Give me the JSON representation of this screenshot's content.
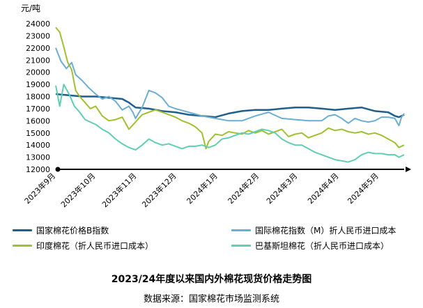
{
  "chart_data": {
    "type": "line",
    "title": "2023/24年度以来国内外棉花现货价格走势图",
    "source": "数据来源：国家棉花市场监测系统",
    "unit": "元/吨",
    "ylim": [
      12000,
      24000
    ],
    "yticks": [
      "24000",
      "23000",
      "22000",
      "21000",
      "20000",
      "19000",
      "18000",
      "17000",
      "16000",
      "15000",
      "14000",
      "13000",
      "12000"
    ],
    "xlim": [
      0,
      262
    ],
    "x_tick_labels": [
      "2023年9月",
      "2023年10月",
      "2023年11月",
      "2023年12月",
      "2024年1月",
      "2024年2月",
      "2024年3月",
      "2024年4月",
      "2024年5月"
    ],
    "x_tick_positions": [
      0,
      30,
      61,
      91,
      122,
      153,
      182,
      213,
      243
    ],
    "grid": false,
    "legend_position": "bottom",
    "series": [
      {
        "name": "国家棉花价格B指数",
        "color": "#1f5f8b",
        "x": [
          0,
          10,
          20,
          30,
          40,
          50,
          55,
          60,
          70,
          80,
          90,
          100,
          110,
          120,
          130,
          140,
          150,
          160,
          170,
          180,
          190,
          200,
          210,
          220,
          230,
          240,
          250,
          255,
          258,
          262
        ],
        "y": [
          18200,
          18100,
          18000,
          18000,
          17900,
          17800,
          17500,
          17100,
          17000,
          16800,
          16700,
          16500,
          16400,
          16300,
          16600,
          16800,
          16900,
          16900,
          17000,
          17100,
          17100,
          17000,
          16900,
          17000,
          17100,
          16800,
          16700,
          16400,
          16300,
          16500
        ]
      },
      {
        "name": "国际棉花指数（M）折人民币进口成本",
        "color": "#6aaed6",
        "x": [
          0,
          4,
          8,
          12,
          15,
          20,
          25,
          30,
          35,
          40,
          45,
          50,
          55,
          58,
          60,
          65,
          70,
          75,
          80,
          85,
          90,
          100,
          110,
          120,
          130,
          140,
          150,
          160,
          170,
          180,
          190,
          200,
          205,
          210,
          215,
          220,
          225,
          230,
          235,
          240,
          245,
          250,
          255,
          258,
          260,
          262
        ],
        "y": [
          22000,
          20900,
          20300,
          20800,
          19800,
          19300,
          18700,
          18200,
          17800,
          18000,
          17600,
          16900,
          17200,
          16700,
          16200,
          17100,
          18500,
          18300,
          17900,
          17200,
          17000,
          16700,
          16400,
          16200,
          16000,
          16000,
          16400,
          16700,
          16200,
          16100,
          16000,
          16000,
          16400,
          16500,
          16200,
          15800,
          16200,
          16000,
          15900,
          16000,
          16300,
          16300,
          16200,
          15600,
          16300,
          16600
        ]
      },
      {
        "name": "印度棉花（折人民币进口成本）",
        "color": "#9ec12e",
        "x": [
          0,
          3,
          6,
          9,
          12,
          15,
          18,
          22,
          26,
          30,
          35,
          40,
          45,
          50,
          55,
          60,
          65,
          70,
          75,
          80,
          85,
          90,
          95,
          100,
          105,
          110,
          113,
          115,
          120,
          125,
          130,
          135,
          140,
          145,
          150,
          155,
          160,
          165,
          170,
          175,
          180,
          185,
          190,
          195,
          200,
          205,
          210,
          215,
          220,
          225,
          230,
          235,
          240,
          245,
          250,
          255,
          258,
          260,
          262
        ],
        "y": [
          23700,
          23300,
          22100,
          20800,
          20200,
          18500,
          18000,
          17500,
          17000,
          17200,
          16400,
          16000,
          16100,
          16300,
          15300,
          15900,
          16500,
          16700,
          16900,
          16700,
          16500,
          16300,
          16000,
          15800,
          15500,
          15000,
          13700,
          14300,
          14900,
          14800,
          15100,
          15000,
          14900,
          15200,
          15000,
          15200,
          14900,
          15100,
          15300,
          14700,
          14900,
          15000,
          14600,
          14800,
          15000,
          15400,
          15200,
          15300,
          15100,
          15000,
          15100,
          14900,
          15000,
          14800,
          14500,
          14200,
          13800,
          13900,
          14000
        ]
      },
      {
        "name": "巴基斯坦棉花（折人民币进口成本）",
        "color": "#5ecfb0",
        "x": [
          0,
          3,
          6,
          10,
          14,
          18,
          22,
          26,
          30,
          35,
          40,
          45,
          50,
          55,
          60,
          65,
          70,
          75,
          80,
          85,
          90,
          95,
          100,
          105,
          110,
          115,
          120,
          125,
          130,
          135,
          140,
          145,
          150,
          155,
          160,
          165,
          170,
          175,
          180,
          185,
          190,
          195,
          200,
          205,
          210,
          215,
          220,
          225,
          230,
          235,
          240,
          245,
          250,
          255,
          258,
          262
        ],
        "y": [
          18900,
          17200,
          19000,
          18200,
          17200,
          16700,
          16100,
          15900,
          15700,
          15300,
          15000,
          14500,
          14100,
          13800,
          13600,
          14000,
          14500,
          14200,
          14000,
          14100,
          13900,
          13700,
          13900,
          13900,
          14000,
          13800,
          14000,
          14500,
          14600,
          14800,
          15000,
          14900,
          15100,
          15300,
          15200,
          15000,
          14500,
          14200,
          14000,
          14000,
          13700,
          13400,
          13200,
          13000,
          12800,
          12700,
          12600,
          12800,
          13200,
          13400,
          13300,
          13300,
          13200,
          13200,
          13000,
          13200
        ]
      }
    ]
  }
}
